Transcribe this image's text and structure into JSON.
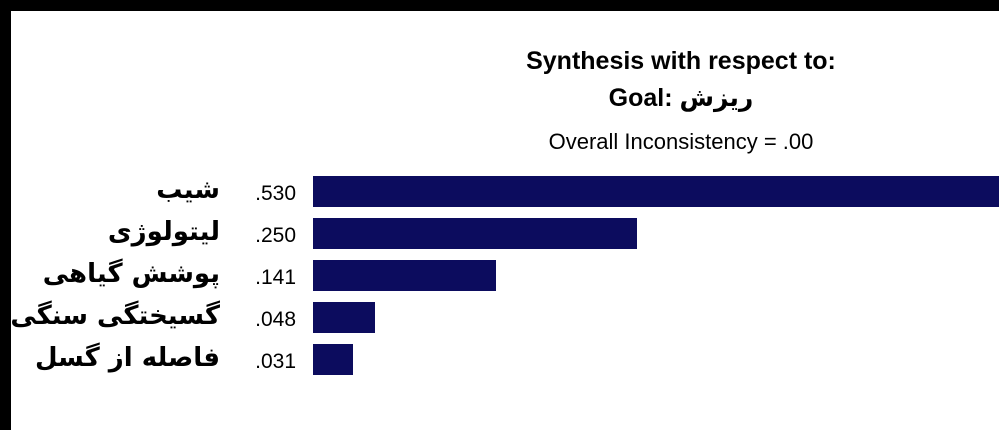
{
  "header": {
    "line1": "Synthesis with respect to:",
    "goal_prefix": "Goal: ",
    "goal_name": "ریزش",
    "inconsistency": "Overall Inconsistency = .00"
  },
  "chart_data": {
    "type": "bar",
    "orientation": "horizontal",
    "categories": [
      "شیب",
      "لیتولوژی",
      "پوشش گیاهی",
      "گسیختگی سنگی",
      "فاصله از گسل"
    ],
    "values": [
      0.53,
      0.25,
      0.141,
      0.048,
      0.031
    ],
    "value_labels": [
      ".530",
      ".250",
      ".141",
      ".048",
      ".031"
    ],
    "bar_color": "#0c0c5e",
    "xlim": [
      0,
      0.53
    ]
  }
}
